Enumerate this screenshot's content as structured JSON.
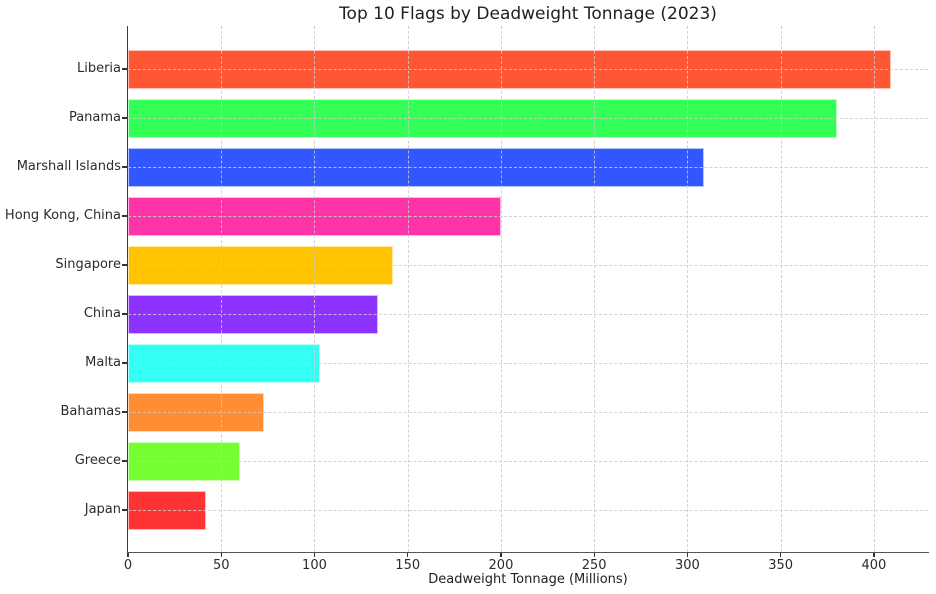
{
  "title": "Top 10 Flags by Deadweight Tonnage (2023)",
  "chart_data": {
    "type": "bar",
    "orientation": "horizontal",
    "title": "Top 10 Flags by Deadweight Tonnage (2023)",
    "xlabel": "Deadweight Tonnage (Millions)",
    "ylabel": "",
    "categories": [
      "Liberia",
      "Panama",
      "Marshall Islands",
      "Hong Kong, China",
      "Singapore",
      "China",
      "Malta",
      "Bahamas",
      "Greece",
      "Japan"
    ],
    "values": [
      409,
      380,
      309,
      200,
      142,
      134,
      103,
      73,
      60,
      42
    ],
    "bar_colors": [
      "#FF5733",
      "#33FF57",
      "#3357FF",
      "#FF33A8",
      "#FFC300",
      "#8E33FF",
      "#33FFF5",
      "#FF8D33",
      "#75FF33",
      "#FF3333"
    ],
    "xlim": [
      0,
      429
    ],
    "xticks": [
      0,
      50,
      100,
      150,
      200,
      250,
      300,
      350,
      400
    ],
    "grid": "both-dashed",
    "grid_color": "#cbcbcb",
    "legend": "none",
    "spine_color": "#3c3c3c",
    "text_color": "#262626"
  }
}
